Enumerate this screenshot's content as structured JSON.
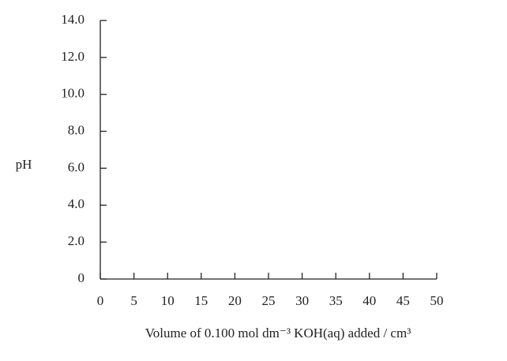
{
  "chart_data": {
    "type": "line",
    "xlabel": "Volume of 0.100 mol dm⁻³ KOH(aq) added / cm³",
    "ylabel": "pH",
    "xlim": [
      0,
      50
    ],
    "xticks": [
      0,
      5,
      10,
      15,
      20,
      25,
      30,
      35,
      40,
      45,
      50
    ],
    "ylim": [
      0,
      14
    ],
    "yticks": [
      0,
      {
        "value": 2,
        "label": "2.0"
      },
      {
        "value": 4,
        "label": "4.0"
      },
      {
        "value": 6,
        "label": "6.0"
      },
      {
        "value": 8,
        "label": "8.0"
      },
      {
        "value": 10,
        "label": "10.0"
      },
      {
        "value": 12,
        "label": "12.0"
      },
      {
        "value": 14,
        "label": "14.0"
      }
    ],
    "series": []
  }
}
